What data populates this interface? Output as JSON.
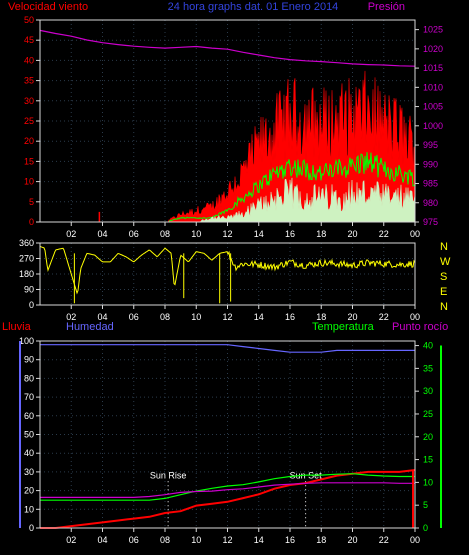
{
  "title": "24 hora graphs dat. 01 Enero 2014",
  "colors": {
    "background": "#000000",
    "wind_speed": "#ff0000",
    "wind_avg": "#00ff00",
    "wind_min": "#ccffcc",
    "pressure": "#cc00cc",
    "direction": "#ffff00",
    "rain": "#ff0000",
    "humidity": "#6666ff",
    "temperature": "#00ff00",
    "dewpoint": "#cc00cc",
    "grid": "#2a3a4a",
    "frame": "#d8d8d8"
  },
  "chart_data": [
    {
      "type": "line",
      "name": "wind-and-pressure",
      "left_title": "Velocidad viento",
      "right_title": "Presión",
      "x_ticks": [
        "02",
        "04",
        "06",
        "08",
        "10",
        "12",
        "14",
        "16",
        "18",
        "20",
        "22",
        "00"
      ],
      "y_left_ticks": [
        "0",
        "5",
        "10",
        "15",
        "20",
        "25",
        "30",
        "35",
        "40",
        "45",
        "50"
      ],
      "y_left_range": [
        0,
        50
      ],
      "y_right_ticks": [
        "975",
        "980",
        "985",
        "990",
        "995",
        "1000",
        "1005",
        "1010",
        "1015",
        "1020",
        "1025"
      ],
      "y_right_range": [
        975,
        1027.5
      ],
      "x_hours": [
        0,
        1,
        2,
        3,
        4,
        5,
        6,
        7,
        8,
        9,
        10,
        11,
        12,
        13,
        14,
        15,
        16,
        17,
        18,
        19,
        20,
        21,
        22,
        23,
        24
      ],
      "series": [
        {
          "name": "Velocidad viento",
          "axis": "left",
          "style": "spiky",
          "values": [
            0,
            0,
            0,
            0,
            0,
            0,
            0,
            0,
            0,
            2,
            3,
            4,
            8,
            13,
            20,
            24,
            28,
            27,
            26,
            27,
            28,
            29,
            26,
            24,
            20
          ]
        },
        {
          "name": "",
          "axis": "left",
          "style": "line",
          "values": [
            0,
            0,
            0,
            0,
            0,
            0,
            0,
            0,
            0,
            1,
            1,
            1,
            3,
            6,
            9,
            12,
            14,
            13,
            12,
            13,
            14,
            15,
            13,
            12,
            11
          ]
        },
        {
          "name": "",
          "axis": "left",
          "style": "fill",
          "values": [
            0,
            0,
            0,
            0,
            0,
            0,
            0,
            0,
            0,
            0,
            0,
            1,
            1,
            2,
            4,
            6,
            7,
            6,
            6,
            6,
            7,
            7,
            6,
            6,
            5
          ]
        },
        {
          "name": "Presión",
          "axis": "right",
          "style": "line",
          "values": [
            1024.8,
            1024.0,
            1023.3,
            1022.3,
            1021.6,
            1021.1,
            1020.7,
            1020.4,
            1020.2,
            1020.4,
            1020.6,
            1020.2,
            1019.9,
            1019.1,
            1018.4,
            1017.7,
            1017.2,
            1016.9,
            1016.7,
            1016.4,
            1016.1,
            1015.9,
            1015.8,
            1015.6,
            1015.5
          ]
        }
      ]
    },
    {
      "type": "line",
      "name": "wind-direction",
      "y_ticks": [
        "0",
        "90",
        "180",
        "270",
        "360"
      ],
      "y_range": [
        0,
        360
      ],
      "compass_labels": [
        "N",
        "W",
        "S",
        "E",
        "N"
      ],
      "x_hours": [
        0,
        0.3,
        0.5,
        1.0,
        1.5,
        2.0,
        2.4,
        2.6,
        3.0,
        3.5,
        4.0,
        4.5,
        5.0,
        5.5,
        6.0,
        6.5,
        7.0,
        7.5,
        8.0,
        8.4,
        8.6,
        9.0,
        9.5,
        10.0,
        10.5,
        11.0,
        11.5,
        12.0,
        12.5,
        13.0,
        14.0,
        15.0,
        16.0,
        17.0,
        18.0,
        19.0,
        20.0,
        21.0,
        22.0,
        23.0,
        24.0
      ],
      "values": [
        340,
        330,
        200,
        320,
        330,
        180,
        60,
        210,
        300,
        290,
        250,
        250,
        300,
        280,
        250,
        290,
        320,
        280,
        330,
        300,
        100,
        290,
        250,
        310,
        300,
        260,
        300,
        310,
        220,
        240,
        235,
        220,
        250,
        230,
        245,
        240,
        230,
        245,
        240,
        235,
        240
      ]
    },
    {
      "type": "line",
      "name": "rain-humidity-temperature",
      "left_title": "Lluvia",
      "humidity_title": "Humedad",
      "temperature_title": "Temperatura",
      "dewpoint_title": "Punto rocío",
      "x_ticks": [
        "02",
        "04",
        "06",
        "08",
        "10",
        "12",
        "14",
        "16",
        "18",
        "20",
        "22",
        "00"
      ],
      "y_left_ticks": [
        "0",
        "10",
        "20",
        "30",
        "40",
        "50",
        "60",
        "70",
        "80",
        "90",
        "100"
      ],
      "y_left_range": [
        0,
        100
      ],
      "y_right_ticks": [
        "0",
        "5",
        "10",
        "15",
        "20",
        "25",
        "30",
        "35",
        "40"
      ],
      "y_right_range": [
        0,
        41
      ],
      "sun_rise_label": "Sun Rise",
      "sun_set_label": "Sun Set",
      "sun_rise_hour": 8.2,
      "sun_set_hour": 17.0,
      "x_hours": [
        0,
        1,
        2,
        3,
        4,
        5,
        6,
        7,
        8,
        9,
        10,
        11,
        12,
        13,
        14,
        15,
        16,
        17,
        18,
        19,
        20,
        21,
        22,
        23,
        24
      ],
      "series": [
        {
          "name": "Lluvia",
          "axis": "left",
          "color_key": "rain",
          "values": [
            0,
            0,
            1,
            2,
            3,
            4,
            5,
            6,
            8,
            9,
            12,
            13,
            14,
            16,
            18,
            21,
            23,
            24,
            26,
            28,
            29,
            30,
            30,
            30,
            31
          ]
        },
        {
          "name": "Humedad",
          "axis": "left",
          "color_key": "humidity",
          "values": [
            98,
            98,
            98,
            98,
            98,
            98,
            98,
            98,
            98,
            98,
            98,
            98,
            98,
            97,
            96,
            95,
            94,
            94,
            94,
            95,
            95,
            95,
            95,
            95,
            95
          ]
        },
        {
          "name": "Temperatura",
          "axis": "right",
          "color_key": "temperature",
          "values": [
            6.1,
            6.1,
            6.1,
            6.1,
            6.1,
            6.1,
            6.1,
            6.1,
            6.5,
            7.3,
            8.1,
            8.7,
            9.2,
            9.5,
            10.1,
            10.8,
            11.3,
            11.6,
            11.6,
            11.8,
            11.9,
            11.6,
            11.4,
            11.3,
            11.3
          ]
        },
        {
          "name": "Punto rocío",
          "axis": "right",
          "color_key": "dewpoint",
          "values": [
            6.7,
            6.7,
            6.7,
            6.7,
            6.7,
            6.7,
            6.7,
            6.9,
            7.3,
            7.8,
            8.0,
            8.1,
            8.4,
            8.6,
            9.0,
            9.4,
            9.6,
            9.8,
            9.9,
            9.9,
            9.9,
            9.9,
            9.9,
            9.8,
            9.8
          ]
        }
      ]
    }
  ]
}
